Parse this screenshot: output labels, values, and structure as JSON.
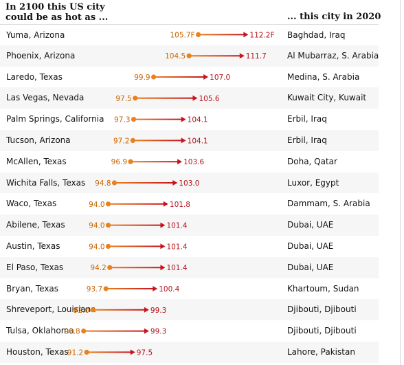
{
  "header": {
    "left_line1": "In 2100 this US city",
    "left_line2": "could be as hot as ...",
    "right": "... this city in 2020"
  },
  "colors": {
    "current_dot": "#e8821e",
    "arrow_start": "#e8821e",
    "arrow_end": "#c8141e",
    "current_label": "#c86400",
    "future_label": "#b4141e"
  },
  "chart_data": {
    "type": "arrow",
    "xlim": [
      88,
      114
    ],
    "rows": [
      {
        "us_city": "Yuma, Arizona",
        "now_label": "105.7F",
        "future_label": "112.2F",
        "now": 105.7,
        "future": 112.2,
        "match": "Baghdad, Iraq"
      },
      {
        "us_city": "Phoenix, Arizona",
        "now_label": "104.5",
        "future_label": "111.7",
        "now": 104.5,
        "future": 111.7,
        "match": "Al Mubarraz, S. Arabia"
      },
      {
        "us_city": "Laredo, Texas",
        "now_label": "99.9",
        "future_label": "107.0",
        "now": 99.9,
        "future": 107.0,
        "match": "Medina, S. Arabia"
      },
      {
        "us_city": "Las Vegas, Nevada",
        "now_label": "97.5",
        "future_label": "105.6",
        "now": 97.5,
        "future": 105.6,
        "match": "Kuwait City, Kuwait"
      },
      {
        "us_city": "Palm Springs, California",
        "now_label": "97.3",
        "future_label": "104.1",
        "now": 97.3,
        "future": 104.1,
        "match": "Erbil, Iraq"
      },
      {
        "us_city": "Tucson, Arizona",
        "now_label": "97.2",
        "future_label": "104.1",
        "now": 97.2,
        "future": 104.1,
        "match": "Erbil, Iraq"
      },
      {
        "us_city": "McAllen, Texas",
        "now_label": "96.9",
        "future_label": "103.6",
        "now": 96.9,
        "future": 103.6,
        "match": "Doha, Qatar"
      },
      {
        "us_city": "Wichita Falls, Texas",
        "now_label": "94.8",
        "future_label": "103.0",
        "now": 94.8,
        "future": 103.0,
        "match": "Luxor, Egypt"
      },
      {
        "us_city": "Waco, Texas",
        "now_label": "94.0",
        "future_label": "101.8",
        "now": 94.0,
        "future": 101.8,
        "match": "Dammam, S. Arabia"
      },
      {
        "us_city": "Abilene, Texas",
        "now_label": "94.0",
        "future_label": "101.4",
        "now": 94.0,
        "future": 101.4,
        "match": "Dubai, UAE"
      },
      {
        "us_city": "Austin, Texas",
        "now_label": "94.0",
        "future_label": "101.4",
        "now": 94.0,
        "future": 101.4,
        "match": "Dubai, UAE"
      },
      {
        "us_city": "El Paso, Texas",
        "now_label": "94.2",
        "future_label": "101.4",
        "now": 94.2,
        "future": 101.4,
        "match": "Dubai, UAE"
      },
      {
        "us_city": "Bryan, Texas",
        "now_label": "93.7",
        "future_label": "100.4",
        "now": 93.7,
        "future": 100.4,
        "match": "Khartoum, Sudan"
      },
      {
        "us_city": "Shreveport, Louisiana",
        "now_label": "92.0",
        "future_label": "99.3",
        "now": 92.0,
        "future": 99.3,
        "match": "Djibouti, Djibouti"
      },
      {
        "us_city": "Tulsa, Oklahoma",
        "now_label": "90.8",
        "future_label": "99.3",
        "now": 90.8,
        "future": 99.3,
        "match": "Djibouti, Djibouti"
      },
      {
        "us_city": "Houston, Texas",
        "now_label": "91.2",
        "future_label": "97.5",
        "now": 91.2,
        "future": 97.5,
        "match": "Lahore, Pakistan"
      }
    ]
  }
}
